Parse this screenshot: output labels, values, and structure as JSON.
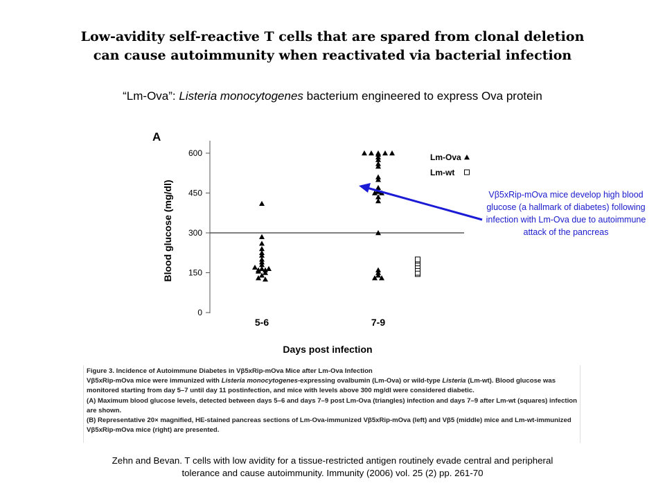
{
  "slide": {
    "title_line1": "Low-avidity self-reactive T cells that are spared from clonal deletion",
    "title_line2": "can cause autoimmunity when reactivated via bacterial infection",
    "subtitle_prefix": "“Lm-Ova”: ",
    "subtitle_italic": "Listeria monocytogenes",
    "subtitle_suffix": " bacterium engineered to express Ova protein",
    "callout": "Vβ5xRip-mOva mice develop high blood glucose (a hallmark of diabetes) following infection with Lm-Ova due to autoimmune attack of the pancreas",
    "citation_line1": "Zehn and Bevan. T cells with low avidity for a tissue-restricted antigen routinely evade central and peripheral",
    "citation_line2": "tolerance and cause autoimmunity. Immunity (2006) vol. 25 (2) pp. 261-70"
  },
  "caption": {
    "heading": "Figure 3.  Incidence of Autoimmune Diabetes in Vβ5xRip-mOva Mice after Lm-Ova Infection",
    "p1_a": "Vβ5xRip-mOva mice were immunized with ",
    "p1_italic": "Listeria monocytogenes",
    "p1_b": "-expressing ovalbumin (Lm-Ova) or wild-type ",
    "p1_italic2": "Listeria",
    "p1_c": " (Lm-wt). Blood glucose was monitored starting from day 5–7 until day 11 postinfection, and mice with levels above 300 mg/dl were considered diabetic.",
    "p2": "(A) Maximum blood glucose levels, detected between days 5–6 and days 7–9 post Lm-Ova (triangles) infection and days 7–9 after Lm-wt (squares) infection are shown.",
    "p3": "(B) Representative 20× magnified, HE-stained pancreas sections of Lm-Ova-immunized Vβ5xRip-mOva (left) and Vβ5 (middle) mice and Lm-wt-immunized Vβ5xRip-mOva mice (right) are presented."
  },
  "chart_data": {
    "type": "scatter",
    "panel_label": "A",
    "xlabel": "Days post infection",
    "ylabel": "Blood glucose (mg/dl)",
    "categories": [
      "5-6",
      "7-9"
    ],
    "ylim": [
      0,
      620
    ],
    "yticks": [
      0,
      150,
      300,
      450,
      600
    ],
    "threshold": 300,
    "series": [
      {
        "name": "Lm-Ova",
        "marker": "triangle",
        "groups": [
          {
            "category": "5-6",
            "values": [
              410,
              285,
              260,
              240,
              225,
              215,
              200,
              190,
              180,
              170,
              165,
              165,
              160,
              160,
              155,
              150,
              140,
              130,
              125
            ]
          },
          {
            "category": "7-9",
            "values": [
              600,
              600,
              600,
              600,
              600,
              595,
              585,
              575,
              560,
              550,
              510,
              500,
              470,
              460,
              455,
              450,
              450,
              435,
              420,
              300,
              160,
              150,
              140,
              130,
              130
            ]
          }
        ]
      },
      {
        "name": "Lm-wt",
        "marker": "square",
        "groups": [
          {
            "category": "7-9",
            "values": [
              200,
              195,
              185,
              175,
              165,
              150,
              145
            ]
          }
        ]
      }
    ]
  }
}
